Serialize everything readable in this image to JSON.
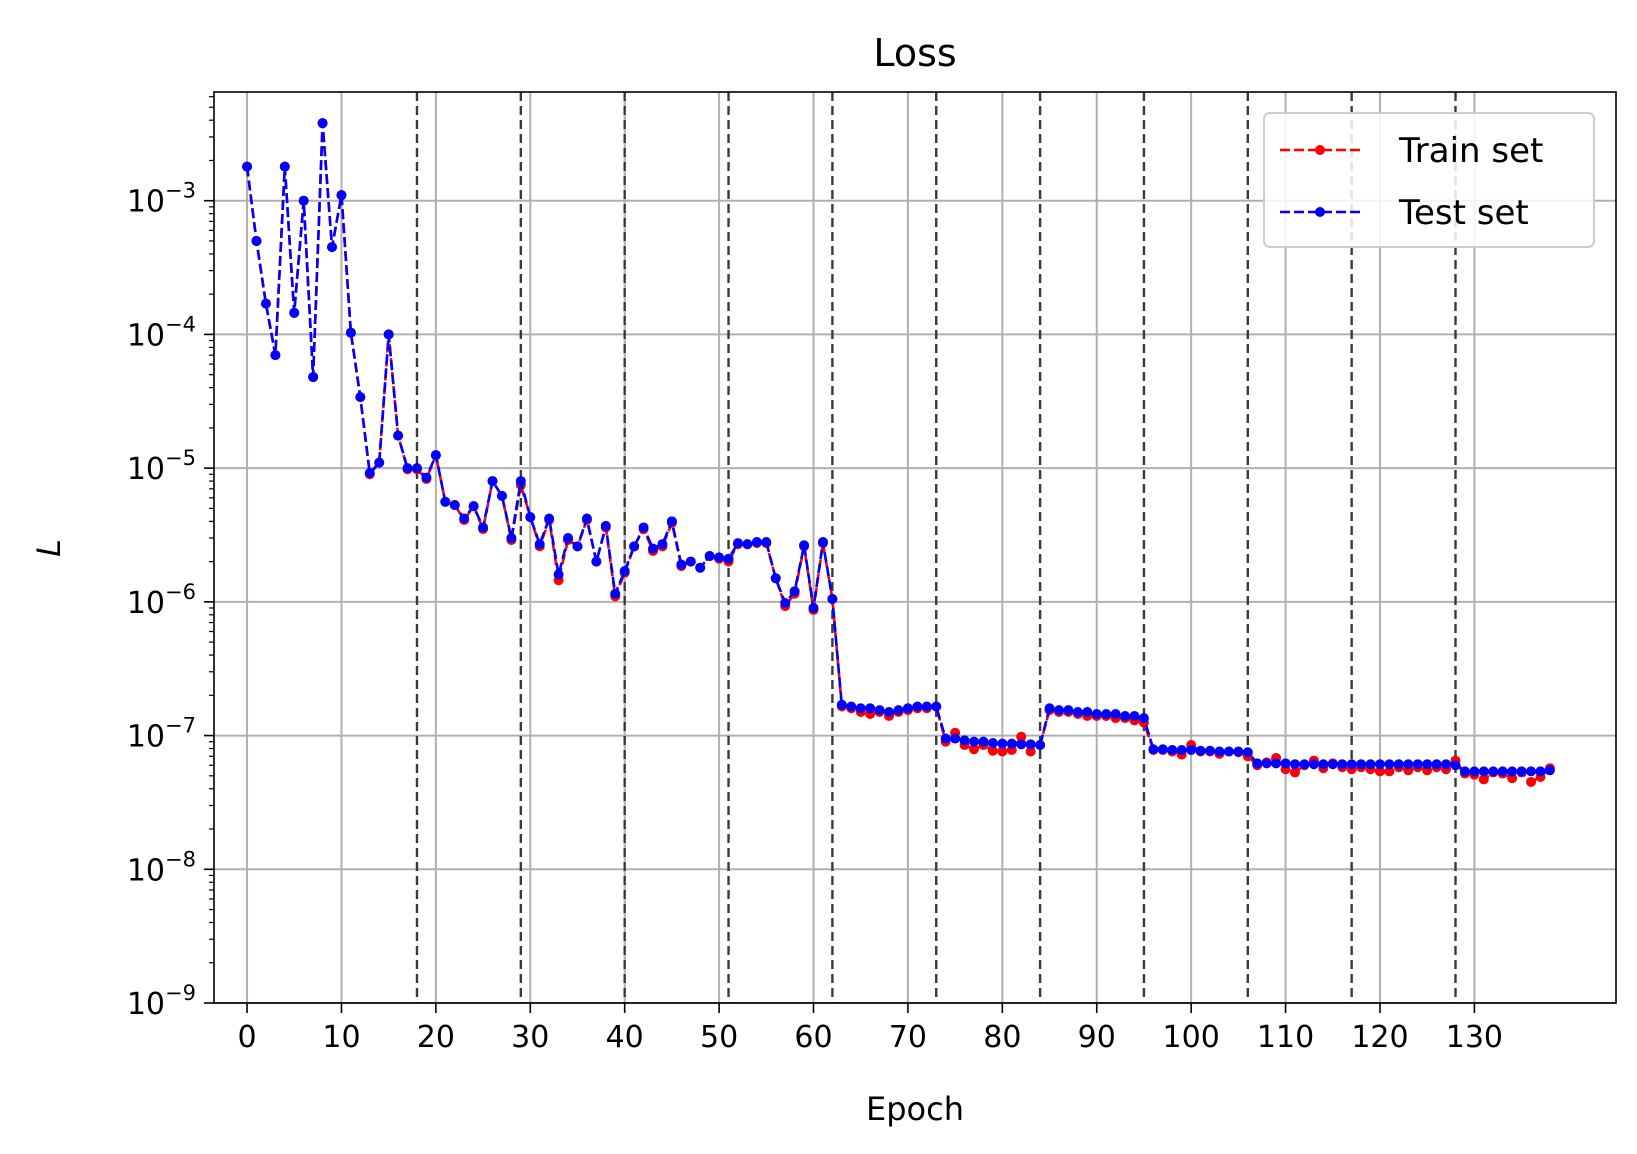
{
  "chart_data": {
    "type": "line",
    "title": "Loss",
    "xlabel": "Epoch",
    "ylabel": "L",
    "yscale": "log",
    "xlim": [
      -3.5,
      145
    ],
    "ylim": [
      1e-09,
      0.0065
    ],
    "xticks": [
      0,
      10,
      20,
      30,
      40,
      50,
      60,
      70,
      80,
      90,
      100,
      110,
      120,
      130
    ],
    "yticks": [
      {
        "value": 1e-09,
        "label": "10",
        "exp": "−9"
      },
      {
        "value": 1e-08,
        "label": "10",
        "exp": "−8"
      },
      {
        "value": 1e-07,
        "label": "10",
        "exp": "−7"
      },
      {
        "value": 1e-06,
        "label": "10",
        "exp": "−6"
      },
      {
        "value": 1e-05,
        "label": "10",
        "exp": "−5"
      },
      {
        "value": 0.0001,
        "label": "10",
        "exp": "−4"
      },
      {
        "value": 0.001,
        "label": "10",
        "exp": "−3"
      }
    ],
    "grid": true,
    "legend_position": "top-right",
    "vertical_markers": [
      18,
      29,
      40,
      51,
      62,
      73,
      84,
      95,
      106,
      117,
      128
    ],
    "series": [
      {
        "name": "Train set",
        "color": "#ff0000",
        "values": [
          0.0018,
          0.0005,
          0.00017,
          7e-05,
          0.0018,
          0.000145,
          0.001,
          4.8e-05,
          0.0038,
          0.00045,
          0.0011,
          0.000103,
          3.4e-05,
          9e-06,
          1.1e-05,
          0.0001,
          1.75e-05,
          9.8e-06,
          9.8e-06,
          8.3e-06,
          1.25e-05,
          5.6e-06,
          5.3e-06,
          4.1e-06,
          5.2e-06,
          3.5e-06,
          8e-06,
          6.2e-06,
          2.9e-06,
          7.5e-06,
          4.3e-06,
          2.6e-06,
          4.1e-06,
          1.45e-06,
          2.9e-06,
          2.6e-06,
          4.1e-06,
          2e-06,
          3.6e-06,
          1.1e-06,
          1.65e-06,
          2.6e-06,
          3.5e-06,
          2.4e-06,
          2.6e-06,
          3.9e-06,
          1.85e-06,
          2e-06,
          1.8e-06,
          2.2e-06,
          2.1e-06,
          2e-06,
          2.7e-06,
          2.7e-06,
          2.75e-06,
          2.75e-06,
          1.5e-06,
          9.3e-07,
          1.15e-06,
          2.6e-06,
          8.7e-07,
          2.75e-06,
          1.05e-06,
          1.65e-07,
          1.6e-07,
          1.5e-07,
          1.45e-07,
          1.5e-07,
          1.4e-07,
          1.5e-07,
          1.55e-07,
          1.6e-07,
          1.6e-07,
          1.65e-07,
          9e-08,
          1.05e-07,
          8.5e-08,
          7.9e-08,
          8.5e-08,
          7.7e-08,
          7.6e-08,
          7.8e-08,
          9.8e-08,
          7.6e-08,
          8.5e-08,
          1.55e-07,
          1.5e-07,
          1.5e-07,
          1.45e-07,
          1.4e-07,
          1.4e-07,
          1.4e-07,
          1.35e-07,
          1.35e-07,
          1.3e-07,
          1.25e-07,
          7.8e-08,
          7.8e-08,
          7.6e-08,
          7.2e-08,
          8.5e-08,
          7.6e-08,
          7.6e-08,
          7.3e-08,
          7.6e-08,
          7.5e-08,
          7e-08,
          6e-08,
          6.3e-08,
          6.8e-08,
          5.6e-08,
          5.3e-08,
          6e-08,
          6.5e-08,
          5.7e-08,
          6.2e-08,
          5.8e-08,
          5.6e-08,
          5.8e-08,
          5.6e-08,
          5.4e-08,
          5.4e-08,
          5.8e-08,
          5.5e-08,
          5.8e-08,
          5.5e-08,
          5.8e-08,
          5.6e-08,
          6.5e-08,
          5.2e-08,
          5.1e-08,
          4.7e-08,
          5.3e-08,
          5.2e-08,
          4.8e-08,
          5.3e-08,
          4.5e-08,
          4.9e-08,
          5.7e-08
        ]
      },
      {
        "name": "Test set",
        "color": "#0000ff",
        "values": [
          0.0018,
          0.0005,
          0.00017,
          7e-05,
          0.0018,
          0.000145,
          0.001,
          4.8e-05,
          0.0038,
          0.00045,
          0.0011,
          0.000103,
          3.4e-05,
          9.2e-06,
          1.1e-05,
          0.0001,
          1.75e-05,
          1e-05,
          1e-05,
          8.5e-06,
          1.25e-05,
          5.6e-06,
          5.3e-06,
          4.2e-06,
          5.2e-06,
          3.6e-06,
          8e-06,
          6.2e-06,
          3e-06,
          8e-06,
          4.3e-06,
          2.7e-06,
          4.2e-06,
          1.6e-06,
          3e-06,
          2.6e-06,
          4.2e-06,
          2e-06,
          3.7e-06,
          1.15e-06,
          1.7e-06,
          2.6e-06,
          3.6e-06,
          2.5e-06,
          2.7e-06,
          4e-06,
          1.9e-06,
          2e-06,
          1.8e-06,
          2.2e-06,
          2.15e-06,
          2.1e-06,
          2.75e-06,
          2.7e-06,
          2.8e-06,
          2.8e-06,
          1.5e-06,
          9.8e-07,
          1.2e-06,
          2.65e-06,
          9e-07,
          2.8e-06,
          1.05e-06,
          1.7e-07,
          1.65e-07,
          1.6e-07,
          1.6e-07,
          1.55e-07,
          1.5e-07,
          1.55e-07,
          1.6e-07,
          1.65e-07,
          1.65e-07,
          1.65e-07,
          9.5e-08,
          9.5e-08,
          9.2e-08,
          9e-08,
          9e-08,
          8.8e-08,
          8.7e-08,
          8.7e-08,
          8.6e-08,
          8.6e-08,
          8.5e-08,
          1.6e-07,
          1.55e-07,
          1.55e-07,
          1.5e-07,
          1.5e-07,
          1.45e-07,
          1.45e-07,
          1.45e-07,
          1.4e-07,
          1.4e-07,
          1.35e-07,
          7.9e-08,
          7.9e-08,
          7.8e-08,
          7.8e-08,
          7.8e-08,
          7.7e-08,
          7.7e-08,
          7.6e-08,
          7.6e-08,
          7.6e-08,
          7.5e-08,
          6.2e-08,
          6.2e-08,
          6.2e-08,
          6.2e-08,
          6.1e-08,
          6.1e-08,
          6.1e-08,
          6.1e-08,
          6.1e-08,
          6.1e-08,
          6.1e-08,
          6.1e-08,
          6.1e-08,
          6.1e-08,
          6.1e-08,
          6.1e-08,
          6.1e-08,
          6.1e-08,
          6.1e-08,
          6.1e-08,
          6.1e-08,
          6e-08,
          5.4e-08,
          5.4e-08,
          5.4e-08,
          5.4e-08,
          5.4e-08,
          5.4e-08,
          5.4e-08,
          5.4e-08,
          5.4e-08,
          5.5e-08
        ]
      }
    ]
  }
}
